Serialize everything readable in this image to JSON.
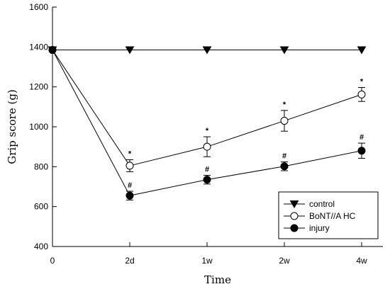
{
  "chart_data": {
    "type": "line",
    "title": "",
    "xlabel": "Time",
    "ylabel": "Grip score (g)",
    "x": [
      "0",
      "2d",
      "1w",
      "2w",
      "4w"
    ],
    "ylim": [
      400,
      1600
    ],
    "yticks": [
      "400",
      "600",
      "800",
      "1000",
      "1200",
      "1400",
      "1600"
    ],
    "grid": false,
    "legend_position": "bottom-right",
    "series": [
      {
        "name": "control",
        "marker": "triangle-down-filled",
        "values": [
          1385,
          1385,
          1385,
          1385,
          1385
        ],
        "errors": [
          0,
          0,
          0,
          0,
          0
        ],
        "annotations": [
          "",
          "",
          "",
          "",
          ""
        ]
      },
      {
        "name": "BoNT//A HC",
        "marker": "circle-open",
        "values": [
          1385,
          805,
          900,
          1030,
          1162
        ],
        "errors": [
          0,
          30,
          50,
          52,
          35
        ],
        "annotations": [
          "",
          "*",
          "*",
          "*",
          "*"
        ]
      },
      {
        "name": "injury",
        "marker": "circle-filled",
        "values": [
          1385,
          655,
          735,
          802,
          880
        ],
        "errors": [
          0,
          22,
          22,
          22,
          38
        ],
        "annotations": [
          "",
          "#",
          "#",
          "#",
          "#"
        ]
      }
    ]
  }
}
